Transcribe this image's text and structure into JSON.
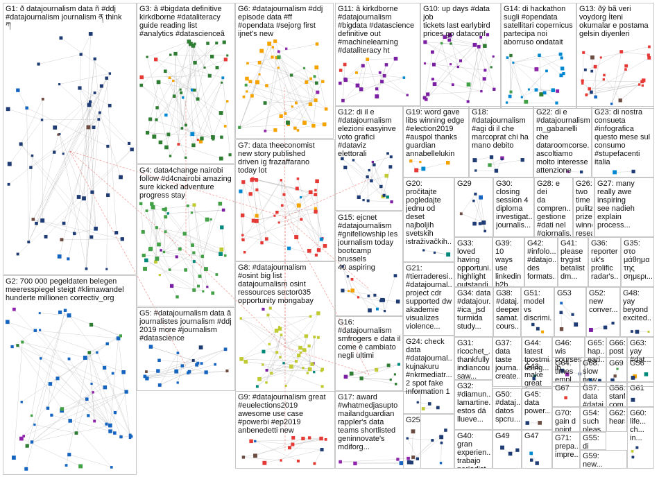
{
  "colors": {
    "background": "#ffffff",
    "box_border": "#c8c8c8",
    "edge": "#b0b0b0",
    "edge_highlight": "#e8554e",
    "node_palette": [
      "#1f3b73",
      "#2e7d32",
      "#f4a300",
      "#7b1fa2",
      "#1565c0",
      "#43a047",
      "#e53935",
      "#00897b",
      "#6d4c41",
      "#8e24aa",
      "#0288d1",
      "#c0ca33"
    ]
  },
  "groups": [
    {
      "id": "G1",
      "label": "G1: ð datajournalism data ñ #ddj\n#datajournalism journalism ན think\nཀ",
      "color": "#1f3b73"
    },
    {
      "id": "G2",
      "label": "G2: 700 000 pegeldaten belegen\nmeeresspiegel steigt #klimawandel\nhunderte millionen correctiv_org",
      "color": "#1565c0"
    },
    {
      "id": "G3",
      "label": "G3: â #bigdata definitive\nkirkdborne #dataliteracy\nguide reading list\n#analytics #datascienceâ",
      "color": "#2e7d32"
    },
    {
      "id": "G4",
      "label": "G4: data4change nairobi\nfollow #d4cnairobi amazing\nsure kicked adventure\nprogress stay",
      "color": "#43a047"
    },
    {
      "id": "G5",
      "label": "G5: #datajournalism data â\njournalistes journalism #ddj\n2019 more #journalism\n#datascience",
      "color": "#1565c0"
    },
    {
      "id": "G6",
      "label": "G6: #datajournalism #ddj\nepisode data #ff\n#opendata #sejorg first\nijnet's new",
      "color": "#f4a300"
    },
    {
      "id": "G7",
      "label": "G7: data theeconomist\nnew story published\ndriven ig frazaffarano\ntoday lot",
      "color": "#e53935"
    },
    {
      "id": "G8",
      "label": "G8: #datajournalism\n#osint big list\ndatajournalism osint\nressources sector035\nopportunity mongabay",
      "color": "#c0ca33"
    },
    {
      "id": "G9",
      "label": "G9: #datajournalism great\n#euelections2019\nawesome use case\n#powerbi #ep2019\nanbenedetti new",
      "color": "#e53935"
    },
    {
      "id": "G10",
      "label": "G10: up days #data job\ntickets last earlybird\nprices go dataconf",
      "color": "#7b1fa2"
    },
    {
      "id": "G11",
      "label": "G11: â kirkdborne\n#datajournalism\n#bigdata #datascience\ndefinitive out\n#machinelearning\n#dataliteracy ht",
      "color": "#7b1fa2"
    },
    {
      "id": "G12",
      "label": "G12: di il e\n#datajournalism\nelezioni easyinve\nvoto grafici #dataviz\nelettorali",
      "color": "#1f3b73"
    },
    {
      "id": "G13",
      "label": "G13: ðÿ bã veri\nvoydorg İteni\nokumalar e postama\ngelsin diyenleri",
      "color": "#e53935"
    },
    {
      "id": "G14",
      "label": "G14: di hackathon\nsugli #opendata\nsatellitari copernicus\npartecipa noi\naborruso ondatait",
      "color": "#0288d1"
    },
    {
      "id": "G15",
      "label": "G15: ejcnet\n#datajournalism\n#gnifellowship les\njournalism today\nbootcamp brussels\n40 aspiring",
      "color": "#1f3b73"
    },
    {
      "id": "G16",
      "label": "G16:\n#datajournalism\nsmfrogers e data il\ncome è cambiato\nnegli ultimi",
      "color": "#2e7d32"
    },
    {
      "id": "G17",
      "label": "G17: award\n#whatmedjasupto\nmailandguardian\nrappler's data\nteams shortlisted\ngeninnovate's\nmdiforg...",
      "color": "#8e24aa"
    },
    {
      "id": "G18",
      "label": "G18:\n#datajournalism\n#agi di il che\nmarcoprat chi ha\nmano debito",
      "color": "#1f3b73"
    },
    {
      "id": "G19",
      "label": "G19: word gave\nlibs winning edge\n#election2019\n#auspol thanks\nguardian\nannabellelukin",
      "color": "#f4a300"
    },
    {
      "id": "G20",
      "label": "G20:\npročitajte\npogledajte\njednu od\ndeset\nnajboljih\nsvetskih\nistraživačkih...",
      "color": "#1f3b73"
    },
    {
      "id": "G21",
      "label": "G21:\n#tierraderesi...\n#datajournal...\nproject cdr\nsupported dw\nakademie\nvisualizes\nviolence...",
      "color": "#1f3b73"
    },
    {
      "id": "G22",
      "label": "G22: di e\n#datajournalism\nm_gabanelli che\ndataroomcorse...\nascoltiamo\nmolto interesse\nattenzione",
      "color": "#1f3b73"
    },
    {
      "id": "G23",
      "label": "G23: di nostra\nconsueta\n#infografica\nquesto mese sul\nconsumo\n#stupefacenti\nitalia",
      "color": "#1f3b73"
    },
    {
      "id": "G24",
      "label": "G24: check\ndata\n#datajournal...\nkujnakuru\n#nkrmediatr...\n2 spot fake\ninformation 1",
      "color": "#1f3b73"
    },
    {
      "id": "G25",
      "label": "G25",
      "color": "#1f3b73"
    },
    {
      "id": "G26",
      "label": "G26: two\ntime\npulitzer\nprize\nwinner\nresearch...",
      "color": "#1f3b73"
    },
    {
      "id": "G27",
      "label": "G27: many\nreally awe\ninspiring\nsee nadieh\nexplain\nprocess...",
      "color": "#1f3b73"
    },
    {
      "id": "G28",
      "label": "G28: e dei\nda\ncompren...\ngestione\n#dati nel\n#giornalis...",
      "color": "#1f3b73"
    },
    {
      "id": "G29",
      "label": "G29",
      "color": "#1f3b73"
    },
    {
      "id": "G30",
      "label": "G30:\nclosing\nsession 4\ndiploma\ninvestigat...\njournalis...",
      "color": "#1f3b73"
    },
    {
      "id": "G31",
      "label": "G31:\nricochet_...\nthankfully\nindiancou...\nsaw...",
      "color": "#1f3b73"
    },
    {
      "id": "G32",
      "label": "G32:\n#diamun...\nlamartine...\nestos dá\nllueve...",
      "color": "#1f3b73"
    },
    {
      "id": "G33",
      "label": "G33: loved\nhaving\nopportuni...\nhighlight\noutstandi...",
      "color": "#1f3b73"
    },
    {
      "id": "G34",
      "label": "G34: data\n#datajour...\n#ica_jsd\nturmida\nstudy...",
      "color": "#1f3b73"
    },
    {
      "id": "G35",
      "label": "G35:\nστο\nμάθημα\nτης\nσημερι...",
      "color": "#1f3b73"
    },
    {
      "id": "G36",
      "label": "G36:\nreporter\nuk's\nprolific\nradar's...",
      "color": "#1f3b73"
    },
    {
      "id": "G37",
      "label": "G37:\ndata\ntaste\njourna...\ncreate...",
      "color": "#1f3b73"
    },
    {
      "id": "G38",
      "label": "G38:\n#dataj...\ndeeper\nsamat...\ncours...",
      "color": "#1f3b73"
    },
    {
      "id": "G39",
      "label": "G39: 10\nways\nuse\nlinkedin\nb2b...",
      "color": "#1f3b73"
    },
    {
      "id": "G40",
      "label": "G40: gran\nexperien...\ntrabajo\nperiodist...",
      "color": "#1f3b73"
    },
    {
      "id": "G41",
      "label": "G41:\nplease\ntrygist\nbetalist\ndm...",
      "color": "#1f3b73"
    },
    {
      "id": "G42",
      "label": "G42:\n#infolo...\n#datajo...\ndes\nformats...",
      "color": "#1f3b73"
    },
    {
      "id": "G43",
      "label": "G43:\nmake\ngreat\nnew...",
      "color": "#1f3b73"
    },
    {
      "id": "G44",
      "label": "G44:\nlatest\ntpostmi...\nusing...",
      "color": "#1f3b73"
    },
    {
      "id": "G45",
      "label": "G45:\ndata\npower...",
      "color": "#1f3b73"
    },
    {
      "id": "G46",
      "label": "G46: wis\ncourses\nib",
      "color": "#1f3b73"
    },
    {
      "id": "G47",
      "label": "G47",
      "color": "#1f3b73"
    },
    {
      "id": "G48",
      "label": "G48: yay\nbeyond\nexcited...",
      "color": "#1f3b73"
    },
    {
      "id": "G49",
      "label": "G49",
      "color": "#1f3b73"
    },
    {
      "id": "G50",
      "label": "G50:\n#dataj...\ndatos\nspcru...",
      "color": "#1f3b73"
    },
    {
      "id": "G51",
      "label": "G51:\nmodel vs\ndiscrimi...",
      "color": "#1f3b73"
    },
    {
      "id": "G52",
      "label": "G52:\nnew\nconver...",
      "color": "#1f3b73"
    },
    {
      "id": "G53",
      "label": "G53",
      "color": "#1f3b73"
    },
    {
      "id": "G54",
      "label": "G54:\nsuch\npleas...",
      "color": "#1f3b73"
    },
    {
      "id": "G55",
      "label": "G55: di",
      "color": "#1f3b73"
    },
    {
      "id": "G56",
      "label": "G56",
      "color": "#1f3b73"
    },
    {
      "id": "G57",
      "label": "G57:\ndata\n#dataj...",
      "color": "#1f3b73"
    },
    {
      "id": "G58",
      "label": "G58:\nstanf...\ncom...",
      "color": "#1f3b73"
    },
    {
      "id": "G59",
      "label": "G59:\nnew...",
      "color": "#1f3b73"
    },
    {
      "id": "G60",
      "label": "G60:\nlife...\nch...\nin...",
      "color": "#1f3b73"
    },
    {
      "id": "G61",
      "label": "G61",
      "color": "#1f3b73"
    },
    {
      "id": "G62",
      "label": "G62:\nhearst...",
      "color": "#1f3b73"
    },
    {
      "id": "G63",
      "label": "G63:\nyay\n#dat...",
      "color": "#1f3b73"
    },
    {
      "id": "G64",
      "label": "G64:\ntimes\nempl...",
      "color": "#1f3b73"
    },
    {
      "id": "G65",
      "label": "G65:\nhap...\nearl...",
      "color": "#1f3b73"
    },
    {
      "id": "G66",
      "label": "G66:\npost",
      "color": "#1f3b73"
    },
    {
      "id": "G67",
      "label": "G67",
      "color": "#1f3b73"
    },
    {
      "id": "G68",
      "label": "G68:\nslow\nnew...",
      "color": "#1f3b73"
    },
    {
      "id": "G69",
      "label": "G69",
      "color": "#1f3b73"
    },
    {
      "id": "G70",
      "label": "G70:\ngain d\npoint",
      "color": "#1f3b73"
    },
    {
      "id": "G71",
      "label": "G71:\nprepa...\nimpre...",
      "color": "#1f3b73"
    }
  ]
}
